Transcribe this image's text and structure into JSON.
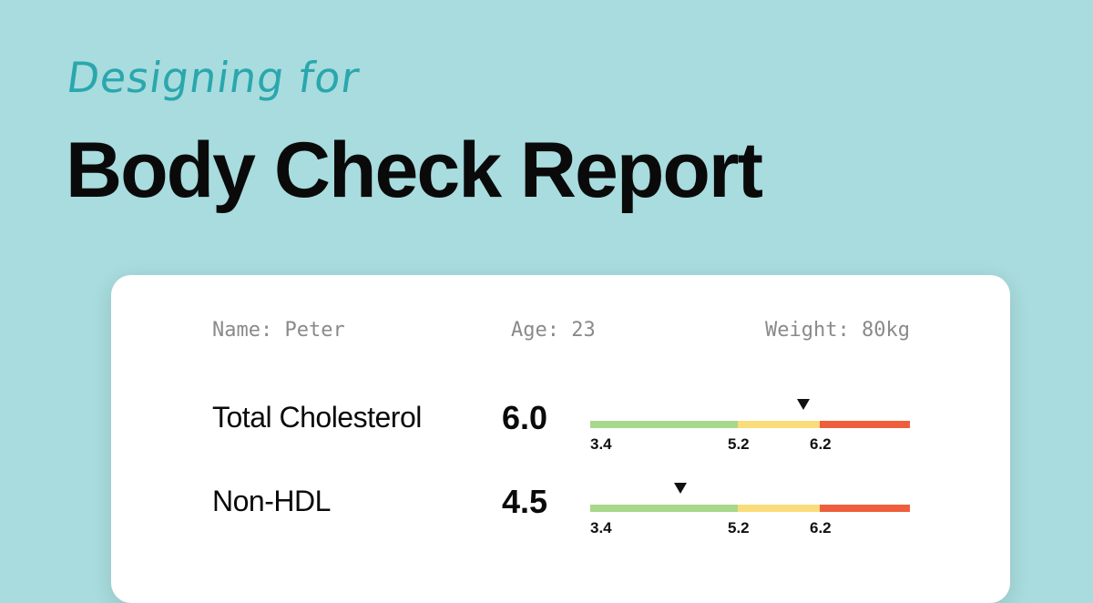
{
  "header": {
    "eyebrow": "Designing for",
    "title": "Body Check Report"
  },
  "patient": {
    "name": "Name: Peter",
    "age": "Age: 23",
    "weight": "Weight: 80kg"
  },
  "scale": {
    "min": 3.4,
    "max": 7.3,
    "thresholds": [
      5.2,
      6.2
    ],
    "tick_labels": [
      "3.4",
      "5.2",
      "6.2"
    ],
    "colors": {
      "normal": "#a8d88b",
      "borderline": "#fbdc7a",
      "high": "#ef5e3c"
    }
  },
  "metrics": [
    {
      "label": "Total Cholesterol",
      "value": "6.0",
      "reading": 6.0
    },
    {
      "label": "Non-HDL",
      "value": "4.5",
      "reading": 4.5
    }
  ],
  "colors": {
    "background": "#a8dcde",
    "accent": "#2aa7ad"
  }
}
